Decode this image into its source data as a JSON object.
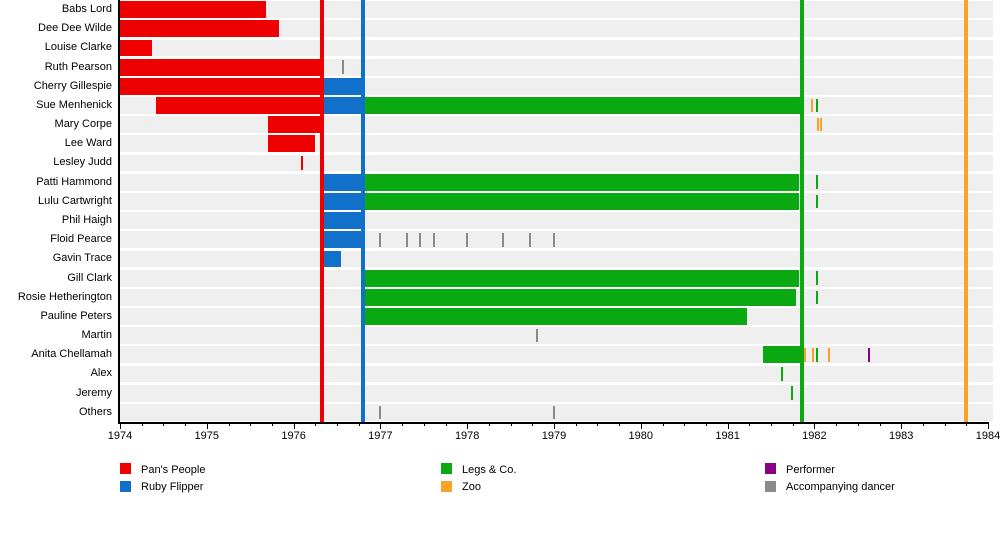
{
  "chart_data": {
    "type": "bar",
    "subtype": "gantt-membership-timeline",
    "title": "",
    "x_axis": {
      "label": "",
      "min": 1974,
      "max": 1984,
      "tick_years": [
        1974,
        1975,
        1976,
        1977,
        1978,
        1979,
        1980,
        1981,
        1982,
        1983,
        1984
      ],
      "minor_tick_interval": 0.25,
      "grid": false
    },
    "groups": {
      "pans_people": {
        "label": "Pan's People",
        "color": "#ee0000"
      },
      "ruby_flipper": {
        "label": "Ruby Flipper",
        "color": "#1170c9"
      },
      "legs_and_co": {
        "label": "Legs & Co.",
        "color": "#0aa912"
      },
      "zoo": {
        "label": "Zoo",
        "color": "#f8a229"
      },
      "performer": {
        "label": "Performer",
        "color": "#870087"
      },
      "accompanying_dancer": {
        "label": "Accompanying dancer",
        "color": "#8a8a8a"
      }
    },
    "era_lines": [
      {
        "group": "pans_people",
        "year": 1976.33
      },
      {
        "group": "ruby_flipper",
        "year": 1976.8
      },
      {
        "group": "legs_and_co",
        "year": 1981.86
      },
      {
        "group": "zoo",
        "year": 1983.75
      }
    ],
    "rows": [
      {
        "name": "Babs Lord",
        "bars": [
          {
            "group": "pans_people",
            "start": 1974.0,
            "end": 1975.68
          }
        ],
        "ticks": []
      },
      {
        "name": "Dee Dee Wilde",
        "bars": [
          {
            "group": "pans_people",
            "start": 1974.0,
            "end": 1975.83
          }
        ],
        "ticks": []
      },
      {
        "name": "Louise Clarke",
        "bars": [
          {
            "group": "pans_people",
            "start": 1974.0,
            "end": 1974.37
          }
        ],
        "ticks": []
      },
      {
        "name": "Ruth Pearson",
        "bars": [
          {
            "group": "pans_people",
            "start": 1974.0,
            "end": 1976.33
          }
        ],
        "ticks": [
          {
            "group": "accompanying_dancer",
            "year": 1976.57
          }
        ]
      },
      {
        "name": "Cherry Gillespie",
        "bars": [
          {
            "group": "pans_people",
            "start": 1974.0,
            "end": 1976.33
          },
          {
            "group": "ruby_flipper",
            "start": 1976.33,
            "end": 1976.8
          }
        ],
        "ticks": []
      },
      {
        "name": "Sue Menhenick",
        "bars": [
          {
            "group": "pans_people",
            "start": 1974.41,
            "end": 1976.33
          },
          {
            "group": "ruby_flipper",
            "start": 1976.33,
            "end": 1976.8
          },
          {
            "group": "legs_and_co",
            "start": 1976.8,
            "end": 1981.83
          }
        ],
        "ticks": [
          {
            "group": "zoo",
            "year": 1981.97
          },
          {
            "group": "legs_and_co",
            "year": 1982.03
          }
        ]
      },
      {
        "name": "Mary Corpe",
        "bars": [
          {
            "group": "pans_people",
            "start": 1975.71,
            "end": 1976.33
          }
        ],
        "ticks": [
          {
            "group": "zoo",
            "year": 1982.04
          },
          {
            "group": "zoo",
            "year": 1982.08
          }
        ]
      },
      {
        "name": "Lee Ward",
        "bars": [
          {
            "group": "pans_people",
            "start": 1975.71,
            "end": 1976.25
          }
        ],
        "ticks": []
      },
      {
        "name": "Lesley Judd",
        "bars": [],
        "ticks": [
          {
            "group": "pans_people",
            "year": 1976.1
          }
        ]
      },
      {
        "name": "Patti Hammond",
        "bars": [
          {
            "group": "ruby_flipper",
            "start": 1976.33,
            "end": 1976.8
          },
          {
            "group": "legs_and_co",
            "start": 1976.8,
            "end": 1981.82
          }
        ],
        "ticks": [
          {
            "group": "legs_and_co",
            "year": 1982.03
          }
        ]
      },
      {
        "name": "Lulu Cartwright",
        "bars": [
          {
            "group": "ruby_flipper",
            "start": 1976.33,
            "end": 1976.8
          },
          {
            "group": "legs_and_co",
            "start": 1976.8,
            "end": 1981.82
          }
        ],
        "ticks": [
          {
            "group": "legs_and_co",
            "year": 1982.03
          }
        ]
      },
      {
        "name": "Phil Haigh",
        "bars": [
          {
            "group": "ruby_flipper",
            "start": 1976.33,
            "end": 1976.8
          }
        ],
        "ticks": []
      },
      {
        "name": "Floid Pearce",
        "bars": [
          {
            "group": "ruby_flipper",
            "start": 1976.33,
            "end": 1976.8
          }
        ],
        "ticks": [
          {
            "group": "accompanying_dancer",
            "year": 1977.0
          },
          {
            "group": "accompanying_dancer",
            "year": 1977.31
          },
          {
            "group": "accompanying_dancer",
            "year": 1977.46
          },
          {
            "group": "accompanying_dancer",
            "year": 1977.62
          },
          {
            "group": "accompanying_dancer",
            "year": 1978.0
          },
          {
            "group": "accompanying_dancer",
            "year": 1978.41
          },
          {
            "group": "accompanying_dancer",
            "year": 1978.72
          },
          {
            "group": "accompanying_dancer",
            "year": 1979.0
          }
        ]
      },
      {
        "name": "Gavin Trace",
        "bars": [
          {
            "group": "ruby_flipper",
            "start": 1976.33,
            "end": 1976.55
          }
        ],
        "ticks": []
      },
      {
        "name": "Gill Clark",
        "bars": [
          {
            "group": "legs_and_co",
            "start": 1976.8,
            "end": 1981.82
          }
        ],
        "ticks": [
          {
            "group": "legs_and_co",
            "year": 1982.03
          }
        ]
      },
      {
        "name": "Rosie Hetherington",
        "bars": [
          {
            "group": "legs_and_co",
            "start": 1976.8,
            "end": 1981.79
          }
        ],
        "ticks": [
          {
            "group": "legs_and_co",
            "year": 1982.03
          }
        ]
      },
      {
        "name": "Pauline Peters",
        "bars": [
          {
            "group": "legs_and_co",
            "start": 1976.8,
            "end": 1981.22
          }
        ],
        "ticks": []
      },
      {
        "name": "Martin",
        "bars": [],
        "ticks": [
          {
            "group": "accompanying_dancer",
            "year": 1978.8
          }
        ]
      },
      {
        "name": "Anita Chellamah",
        "bars": [
          {
            "group": "legs_and_co",
            "start": 1981.41,
            "end": 1981.83
          }
        ],
        "ticks": [
          {
            "group": "zoo",
            "year": 1981.89
          },
          {
            "group": "zoo",
            "year": 1981.98
          },
          {
            "group": "legs_and_co",
            "year": 1982.03
          },
          {
            "group": "zoo",
            "year": 1982.17
          },
          {
            "group": "performer",
            "year": 1982.63
          }
        ]
      },
      {
        "name": "Alex",
        "bars": [],
        "ticks": [
          {
            "group": "legs_and_co",
            "year": 1981.63
          }
        ]
      },
      {
        "name": "Jeremy",
        "bars": [],
        "ticks": [
          {
            "group": "legs_and_co",
            "year": 1981.74
          }
        ]
      },
      {
        "name": "Others",
        "bars": [],
        "ticks": [
          {
            "group": "accompanying_dancer",
            "year": 1977.0
          },
          {
            "group": "accompanying_dancer",
            "year": 1979.0
          }
        ]
      }
    ],
    "legend": {
      "position": "bottom",
      "columns": [
        [
          "pans_people",
          "ruby_flipper"
        ],
        [
          "legs_and_co",
          "zoo"
        ],
        [
          "performer",
          "accompanying_dancer"
        ]
      ]
    }
  }
}
